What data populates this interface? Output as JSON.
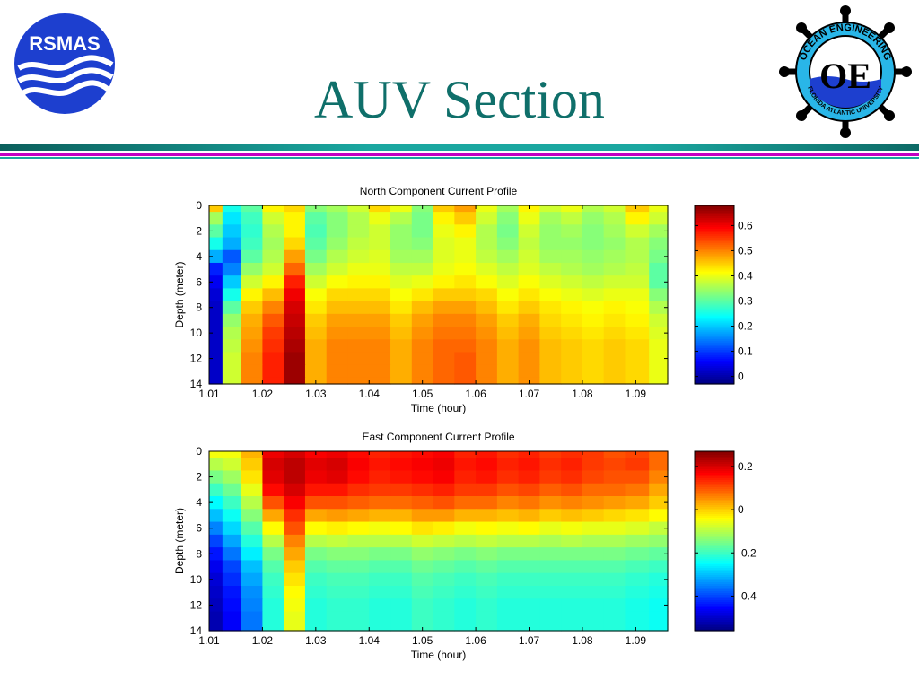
{
  "slide": {
    "title": "AUV Section",
    "logo_left_text": "RSMAS",
    "logo_right_ring_top": "OCEAN ENGINEERING",
    "logo_right_ring_bottom": "FLORIDA ATLANTIC UNIVERSITY",
    "logo_right_monogram": "OE",
    "logo_left_icon": "rsmas-waves-logo",
    "logo_right_icon": "ships-wheel-emblem",
    "colors": {
      "title": "#0f6f6a",
      "rule_teal": "#1aa7a0",
      "rule_magenta": "#c200c2",
      "logo_blue": "#1d3fcf"
    }
  },
  "chart_data": [
    {
      "type": "heatmap",
      "title": "North Component Current Profile",
      "xlabel": "Time (hour)",
      "ylabel": "Depth (meter)",
      "x_ticks": [
        "1.01",
        "1.02",
        "1.03",
        "1.04",
        "1.05",
        "1.06",
        "1.07",
        "1.08",
        "1.09"
      ],
      "x_tick_values": [
        1.01,
        1.02,
        1.03,
        1.04,
        1.05,
        1.06,
        1.07,
        1.08,
        1.09
      ],
      "xlim": [
        1.01,
        1.096
      ],
      "y_ticks": [
        "0",
        "2",
        "4",
        "6",
        "8",
        "10",
        "12",
        "14"
      ],
      "y_tick_values": [
        0,
        2,
        4,
        6,
        8,
        10,
        12,
        14
      ],
      "ylim": [
        0,
        14
      ],
      "y_reversed": true,
      "colormap": "jet",
      "colorbar_ticks": [
        "0",
        "0.1",
        "0.2",
        "0.3",
        "0.4",
        "0.5",
        "0.6"
      ],
      "colorbar_tick_values": [
        0,
        0.1,
        0.2,
        0.3,
        0.4,
        0.5,
        0.6
      ],
      "clim": [
        -0.03,
        0.68
      ],
      "depths": [
        0,
        1,
        2,
        3,
        4,
        5,
        6,
        7,
        8,
        9,
        10,
        11,
        12,
        13,
        14
      ],
      "times": [
        1.011,
        1.014,
        1.018,
        1.022,
        1.026,
        1.03,
        1.034,
        1.038,
        1.042,
        1.046,
        1.05,
        1.054,
        1.058,
        1.062,
        1.066,
        1.07,
        1.074,
        1.078,
        1.082,
        1.086,
        1.09,
        1.095
      ],
      "values": [
        [
          0.45,
          0.25,
          0.3,
          0.42,
          0.44,
          0.33,
          0.35,
          0.38,
          0.44,
          0.4,
          0.33,
          0.45,
          0.48,
          0.4,
          0.35,
          0.42,
          0.38,
          0.4,
          0.36,
          0.38,
          0.45,
          0.4
        ],
        [
          0.35,
          0.22,
          0.28,
          0.38,
          0.42,
          0.3,
          0.33,
          0.36,
          0.4,
          0.36,
          0.32,
          0.42,
          0.45,
          0.38,
          0.33,
          0.4,
          0.35,
          0.37,
          0.34,
          0.36,
          0.42,
          0.38
        ],
        [
          0.3,
          0.2,
          0.27,
          0.36,
          0.42,
          0.29,
          0.33,
          0.36,
          0.38,
          0.34,
          0.32,
          0.4,
          0.42,
          0.36,
          0.32,
          0.38,
          0.34,
          0.35,
          0.33,
          0.35,
          0.38,
          0.35
        ],
        [
          0.25,
          0.18,
          0.28,
          0.35,
          0.44,
          0.3,
          0.34,
          0.37,
          0.38,
          0.34,
          0.33,
          0.39,
          0.4,
          0.36,
          0.33,
          0.37,
          0.34,
          0.34,
          0.33,
          0.34,
          0.36,
          0.33
        ],
        [
          0.18,
          0.12,
          0.3,
          0.36,
          0.48,
          0.32,
          0.36,
          0.38,
          0.39,
          0.35,
          0.35,
          0.39,
          0.4,
          0.37,
          0.35,
          0.38,
          0.35,
          0.35,
          0.34,
          0.35,
          0.36,
          0.32
        ],
        [
          0.08,
          0.15,
          0.34,
          0.38,
          0.52,
          0.35,
          0.38,
          0.4,
          0.4,
          0.37,
          0.37,
          0.4,
          0.41,
          0.39,
          0.37,
          0.39,
          0.37,
          0.36,
          0.35,
          0.36,
          0.37,
          0.3
        ],
        [
          0.05,
          0.2,
          0.38,
          0.42,
          0.57,
          0.38,
          0.41,
          0.42,
          0.42,
          0.39,
          0.4,
          0.42,
          0.43,
          0.41,
          0.39,
          0.41,
          0.39,
          0.38,
          0.37,
          0.38,
          0.38,
          0.3
        ],
        [
          0.03,
          0.25,
          0.42,
          0.46,
          0.6,
          0.41,
          0.44,
          0.44,
          0.44,
          0.41,
          0.43,
          0.45,
          0.45,
          0.44,
          0.41,
          0.43,
          0.41,
          0.4,
          0.39,
          0.4,
          0.4,
          0.33
        ],
        [
          0.02,
          0.3,
          0.45,
          0.5,
          0.62,
          0.43,
          0.46,
          0.46,
          0.46,
          0.43,
          0.46,
          0.48,
          0.48,
          0.46,
          0.43,
          0.45,
          0.43,
          0.42,
          0.41,
          0.42,
          0.41,
          0.36
        ],
        [
          0.02,
          0.34,
          0.47,
          0.53,
          0.63,
          0.45,
          0.48,
          0.48,
          0.48,
          0.45,
          0.48,
          0.5,
          0.5,
          0.48,
          0.45,
          0.47,
          0.44,
          0.43,
          0.42,
          0.43,
          0.42,
          0.38
        ],
        [
          0.02,
          0.36,
          0.48,
          0.55,
          0.64,
          0.46,
          0.49,
          0.49,
          0.49,
          0.46,
          0.49,
          0.51,
          0.51,
          0.49,
          0.46,
          0.48,
          0.45,
          0.44,
          0.43,
          0.44,
          0.43,
          0.39
        ],
        [
          0.02,
          0.37,
          0.49,
          0.56,
          0.65,
          0.47,
          0.5,
          0.5,
          0.5,
          0.47,
          0.5,
          0.52,
          0.52,
          0.5,
          0.47,
          0.49,
          0.46,
          0.45,
          0.44,
          0.45,
          0.44,
          0.4
        ],
        [
          0.02,
          0.38,
          0.5,
          0.57,
          0.66,
          0.47,
          0.5,
          0.5,
          0.5,
          0.47,
          0.5,
          0.52,
          0.53,
          0.5,
          0.47,
          0.49,
          0.46,
          0.45,
          0.44,
          0.45,
          0.44,
          0.4
        ],
        [
          0.02,
          0.38,
          0.5,
          0.57,
          0.66,
          0.47,
          0.5,
          0.5,
          0.5,
          0.47,
          0.5,
          0.52,
          0.53,
          0.5,
          0.47,
          0.49,
          0.46,
          0.45,
          0.44,
          0.45,
          0.44,
          0.4
        ],
        [
          0.02,
          0.38,
          0.5,
          0.57,
          0.66,
          0.47,
          0.5,
          0.5,
          0.5,
          0.47,
          0.5,
          0.52,
          0.53,
          0.5,
          0.47,
          0.49,
          0.46,
          0.45,
          0.44,
          0.45,
          0.44,
          0.4
        ]
      ]
    },
    {
      "type": "heatmap",
      "title": "East Component Current Profile",
      "xlabel": "Time (hour)",
      "ylabel": "Depth (meter)",
      "x_ticks": [
        "1.01",
        "1.02",
        "1.03",
        "1.04",
        "1.05",
        "1.06",
        "1.07",
        "1.08",
        "1.09"
      ],
      "x_tick_values": [
        1.01,
        1.02,
        1.03,
        1.04,
        1.05,
        1.06,
        1.07,
        1.08,
        1.09
      ],
      "xlim": [
        1.01,
        1.096
      ],
      "y_ticks": [
        "0",
        "2",
        "4",
        "6",
        "8",
        "10",
        "12",
        "14"
      ],
      "y_tick_values": [
        0,
        2,
        4,
        6,
        8,
        10,
        12,
        14
      ],
      "ylim": [
        0,
        14
      ],
      "y_reversed": true,
      "colormap": "jet",
      "colorbar_ticks": [
        "0.2",
        "0",
        "-0.2",
        "-0.4"
      ],
      "colorbar_tick_values": [
        0.2,
        0,
        -0.2,
        -0.4
      ],
      "clim": [
        -0.56,
        0.27
      ],
      "depths": [
        0,
        1,
        2,
        3,
        4,
        5,
        6,
        7,
        8,
        9,
        10,
        11,
        12,
        13,
        14
      ],
      "times": [
        1.011,
        1.014,
        1.018,
        1.022,
        1.026,
        1.03,
        1.034,
        1.038,
        1.042,
        1.046,
        1.05,
        1.054,
        1.058,
        1.062,
        1.066,
        1.07,
        1.074,
        1.078,
        1.082,
        1.086,
        1.09,
        1.095
      ],
      "values": [
        [
          -0.05,
          -0.05,
          0.02,
          0.18,
          0.2,
          0.17,
          0.18,
          0.16,
          0.14,
          0.15,
          0.16,
          0.17,
          0.14,
          0.15,
          0.13,
          0.14,
          0.12,
          0.13,
          0.12,
          0.1,
          0.11,
          0.08
        ],
        [
          -0.1,
          -0.08,
          0.0,
          0.2,
          0.22,
          0.19,
          0.2,
          0.17,
          0.15,
          0.16,
          0.17,
          0.18,
          0.15,
          0.16,
          0.14,
          0.15,
          0.13,
          0.14,
          0.12,
          0.11,
          0.12,
          0.08
        ],
        [
          -0.15,
          -0.12,
          -0.02,
          0.19,
          0.22,
          0.18,
          0.19,
          0.16,
          0.14,
          0.15,
          0.16,
          0.17,
          0.14,
          0.15,
          0.13,
          0.14,
          0.12,
          0.13,
          0.11,
          0.1,
          0.1,
          0.06
        ],
        [
          -0.2,
          -0.16,
          -0.06,
          0.16,
          0.2,
          0.15,
          0.15,
          0.13,
          0.12,
          0.12,
          0.13,
          0.14,
          0.12,
          0.12,
          0.1,
          0.11,
          0.09,
          0.1,
          0.08,
          0.08,
          0.07,
          0.03
        ],
        [
          -0.25,
          -0.2,
          -0.1,
          0.1,
          0.17,
          0.1,
          0.1,
          0.09,
          0.08,
          0.08,
          0.09,
          0.1,
          0.08,
          0.08,
          0.06,
          0.07,
          0.05,
          0.06,
          0.05,
          0.04,
          0.03,
          0.0
        ],
        [
          -0.3,
          -0.24,
          -0.14,
          0.03,
          0.13,
          0.03,
          0.04,
          0.03,
          0.02,
          0.02,
          0.04,
          0.04,
          0.02,
          0.02,
          0.01,
          0.02,
          0.0,
          0.01,
          0.0,
          -0.01,
          -0.02,
          -0.04
        ],
        [
          -0.35,
          -0.28,
          -0.18,
          -0.04,
          0.1,
          -0.04,
          -0.03,
          -0.04,
          -0.05,
          -0.04,
          -0.02,
          -0.03,
          -0.05,
          -0.04,
          -0.05,
          -0.04,
          -0.06,
          -0.05,
          -0.06,
          -0.06,
          -0.07,
          -0.09
        ],
        [
          -0.4,
          -0.32,
          -0.22,
          -0.1,
          0.06,
          -0.1,
          -0.09,
          -0.1,
          -0.1,
          -0.1,
          -0.08,
          -0.09,
          -0.1,
          -0.09,
          -0.1,
          -0.1,
          -0.11,
          -0.1,
          -0.11,
          -0.11,
          -0.12,
          -0.13
        ],
        [
          -0.44,
          -0.36,
          -0.26,
          -0.15,
          0.03,
          -0.15,
          -0.14,
          -0.14,
          -0.15,
          -0.15,
          -0.13,
          -0.14,
          -0.15,
          -0.14,
          -0.15,
          -0.15,
          -0.15,
          -0.15,
          -0.15,
          -0.15,
          -0.16,
          -0.17
        ],
        [
          -0.47,
          -0.4,
          -0.3,
          -0.18,
          0.0,
          -0.18,
          -0.17,
          -0.17,
          -0.18,
          -0.18,
          -0.16,
          -0.17,
          -0.18,
          -0.17,
          -0.18,
          -0.18,
          -0.18,
          -0.18,
          -0.18,
          -0.18,
          -0.19,
          -0.2
        ],
        [
          -0.49,
          -0.42,
          -0.32,
          -0.2,
          -0.02,
          -0.2,
          -0.19,
          -0.19,
          -0.2,
          -0.2,
          -0.18,
          -0.19,
          -0.2,
          -0.19,
          -0.2,
          -0.2,
          -0.2,
          -0.2,
          -0.2,
          -0.2,
          -0.21,
          -0.22
        ],
        [
          -0.5,
          -0.44,
          -0.34,
          -0.21,
          -0.04,
          -0.21,
          -0.2,
          -0.2,
          -0.21,
          -0.21,
          -0.19,
          -0.2,
          -0.21,
          -0.2,
          -0.21,
          -0.21,
          -0.21,
          -0.21,
          -0.21,
          -0.21,
          -0.22,
          -0.23
        ],
        [
          -0.51,
          -0.45,
          -0.35,
          -0.22,
          -0.05,
          -0.22,
          -0.21,
          -0.21,
          -0.22,
          -0.22,
          -0.2,
          -0.21,
          -0.22,
          -0.21,
          -0.22,
          -0.22,
          -0.22,
          -0.22,
          -0.22,
          -0.22,
          -0.23,
          -0.24
        ],
        [
          -0.52,
          -0.46,
          -0.36,
          -0.22,
          -0.06,
          -0.22,
          -0.21,
          -0.21,
          -0.22,
          -0.22,
          -0.2,
          -0.21,
          -0.22,
          -0.21,
          -0.22,
          -0.22,
          -0.22,
          -0.22,
          -0.22,
          -0.22,
          -0.23,
          -0.24
        ],
        [
          -0.52,
          -0.46,
          -0.36,
          -0.22,
          -0.06,
          -0.22,
          -0.21,
          -0.21,
          -0.22,
          -0.22,
          -0.2,
          -0.21,
          -0.22,
          -0.21,
          -0.22,
          -0.22,
          -0.22,
          -0.22,
          -0.22,
          -0.22,
          -0.23,
          -0.24
        ]
      ]
    }
  ]
}
